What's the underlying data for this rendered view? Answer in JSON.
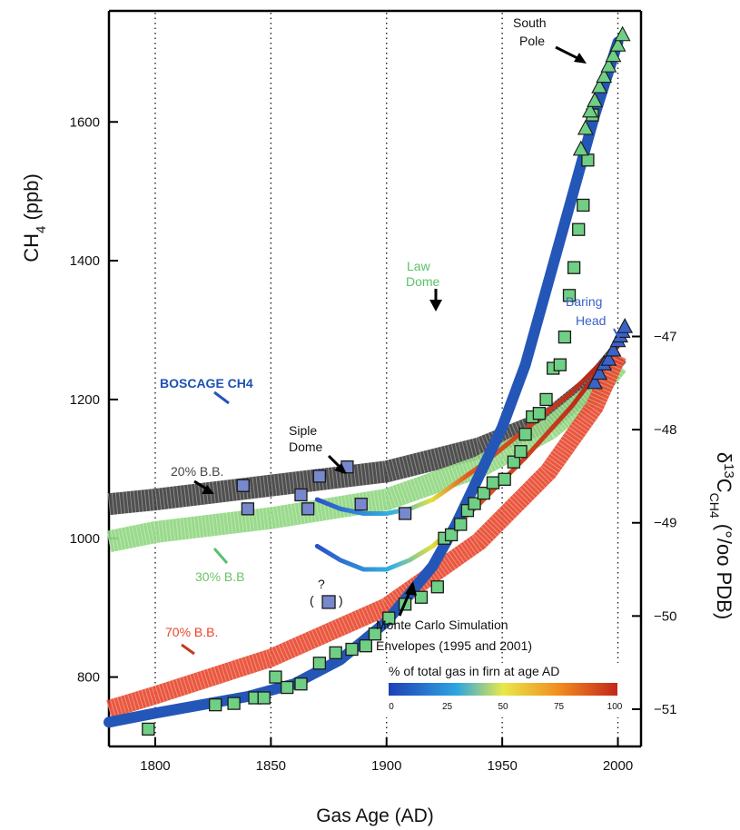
{
  "chart_data": {
    "type": "scatter",
    "xlabel": "Gas Age (AD)",
    "x_ticks": [
      1800,
      1850,
      1900,
      1950,
      2000
    ],
    "xlim": [
      1780,
      2010
    ],
    "left_axis": {
      "label_main": "CH",
      "label_sub": "4",
      "label_unit": "(ppb)",
      "ylim": [
        700,
        1760
      ],
      "ticks": [
        800,
        1000,
        1200,
        1400,
        1600
      ]
    },
    "right_axis": {
      "label_main": "δ",
      "label_sup": "13",
      "label_c": "C",
      "label_sub": "CH4",
      "label_unit": "(°/oo PDB)",
      "ylim": [
        -51.4,
        -46.8
      ],
      "ticks": [
        -47,
        -48,
        -49,
        -50,
        -51
      ]
    },
    "series": [
      {
        "name": "BOSCAGE CH4",
        "axis": "left",
        "color": "#2456b8",
        "x": [
          1780,
          1800,
          1820,
          1840,
          1860,
          1880,
          1900,
          1920,
          1930,
          1940,
          1950,
          1960,
          1970,
          1980,
          1990,
          2000
        ],
        "values": [
          735,
          748,
          760,
          772,
          790,
          825,
          880,
          960,
          1020,
          1090,
          1160,
          1250,
          1370,
          1490,
          1610,
          1715
        ]
      },
      {
        "name": "Law Dome",
        "axis": "left",
        "color": "#6fcf84",
        "marker": "square",
        "x": [
          1797,
          1826,
          1834,
          1843,
          1847,
          1852,
          1857,
          1863,
          1871,
          1878,
          1885,
          1891,
          1895,
          1901,
          1908,
          1915,
          1922,
          1925,
          1928,
          1932,
          1935,
          1938,
          1942,
          1946,
          1951,
          1955,
          1958,
          1960,
          1963,
          1966,
          1969,
          1972,
          1975,
          1977,
          1979,
          1981,
          1983,
          1985,
          1987,
          1989
        ],
        "values": [
          725,
          760,
          762,
          770,
          770,
          800,
          785,
          790,
          820,
          835,
          840,
          845,
          862,
          885,
          905,
          915,
          930,
          1000,
          1005,
          1020,
          1040,
          1050,
          1065,
          1080,
          1085,
          1110,
          1125,
          1150,
          1175,
          1180,
          1200,
          1245,
          1250,
          1290,
          1350,
          1390,
          1445,
          1480,
          1545,
          1610
        ]
      },
      {
        "name": "South Pole",
        "axis": "left",
        "color": "#6fcf84",
        "marker": "triangle",
        "x": [
          1984,
          1986,
          1988,
          1990,
          1992,
          1994,
          1996,
          1998,
          2000,
          2002
        ],
        "values": [
          1560,
          1590,
          1615,
          1630,
          1650,
          1665,
          1680,
          1695,
          1710,
          1725
        ]
      },
      {
        "name": "20% B.B.",
        "axis": "right",
        "color": "#3c3c3c",
        "x": [
          1780,
          1800,
          1850,
          1900,
          1940,
          1970,
          1990,
          2000
        ],
        "values": [
          -48.8,
          -48.75,
          -48.6,
          -48.45,
          -48.2,
          -47.9,
          -47.5,
          -47.2
        ]
      },
      {
        "name": "30% B.B",
        "axis": "right",
        "color": "#8ed67e",
        "x": [
          1780,
          1800,
          1850,
          1900,
          1940,
          1970,
          1990,
          2000
        ],
        "values": [
          -49.2,
          -49.1,
          -48.95,
          -48.75,
          -48.4,
          -48.0,
          -47.6,
          -47.3
        ]
      },
      {
        "name": "70% B.B.",
        "axis": "right",
        "color": "#e8452a",
        "x": [
          1780,
          1800,
          1850,
          1900,
          1940,
          1970,
          1990,
          2000
        ],
        "values": [
          -51.0,
          -50.85,
          -50.45,
          -49.9,
          -49.2,
          -48.45,
          -47.75,
          -47.2
        ]
      },
      {
        "name": "Siple Dome",
        "axis": "right",
        "color": "#7788cc",
        "marker": "square",
        "x": [
          1838,
          1840,
          1863,
          1866,
          1871,
          1883,
          1889,
          1908
        ],
        "values": [
          -48.6,
          -48.85,
          -48.7,
          -48.85,
          -48.5,
          -48.4,
          -48.8,
          -48.9
        ]
      },
      {
        "name": "Baring Head",
        "axis": "right",
        "color": "#3a62c8",
        "marker": "triangle",
        "x": [
          1990,
          1992,
          1994,
          1996,
          1998,
          2000,
          2001,
          2002,
          2003
        ],
        "values": [
          -47.5,
          -47.4,
          -47.3,
          -47.25,
          -47.15,
          -47.05,
          -47.0,
          -46.95,
          -46.9
        ]
      },
      {
        "name": "Monte Carlo Simulation Envelopes (1995 and 2001)",
        "axis": "right",
        "color": "gradient",
        "x": [
          1870,
          1880,
          1890,
          1900,
          1910,
          1920,
          1940,
          1960,
          1980,
          2000
        ],
        "values": [
          -48.75,
          -48.85,
          -48.9,
          -48.9,
          -48.85,
          -48.75,
          -48.4,
          -48.0,
          -47.6,
          -47.1
        ]
      },
      {
        "name": "Monte Carlo Simulation Envelopes (1995 and 2001)",
        "axis": "right",
        "color": "gradient",
        "x": [
          1870,
          1880,
          1890,
          1900,
          1910,
          1920,
          1940,
          1960,
          1980,
          2000
        ],
        "values": [
          -49.25,
          -49.4,
          -49.5,
          -49.5,
          -49.4,
          -49.25,
          -48.8,
          -48.3,
          -47.75,
          -47.1
        ]
      }
    ],
    "outlier": {
      "label": "?",
      "x": 1875,
      "value": -49.85
    },
    "annotations": {
      "south_pole": [
        "South",
        "Pole"
      ],
      "law_dome": [
        "Law",
        "Dome"
      ],
      "baring_head": [
        "Baring",
        "Head"
      ],
      "boscage": "BOSCAGE CH4",
      "siple_dome": [
        "Siple",
        "Dome"
      ],
      "bb20": "20% B.B.",
      "bb30": "30% B.B",
      "bb70": "70% B.B.",
      "monte_carlo": [
        "Monte Carlo Simulation",
        "Envelopes (1995 and 2001)"
      ],
      "outlier_q": "?",
      "outlier_paren_l": "(",
      "outlier_paren_r": ")"
    },
    "colorbar": {
      "title": "% of total gas in firn at age AD",
      "ticks": [
        "0",
        "25",
        "50",
        "75",
        "100"
      ],
      "colors": [
        "#1d3fb8",
        "#2fa6e0",
        "#e8e84a",
        "#f28a1e",
        "#c3261c"
      ]
    },
    "grid": "vertical dotted at x ticks"
  }
}
